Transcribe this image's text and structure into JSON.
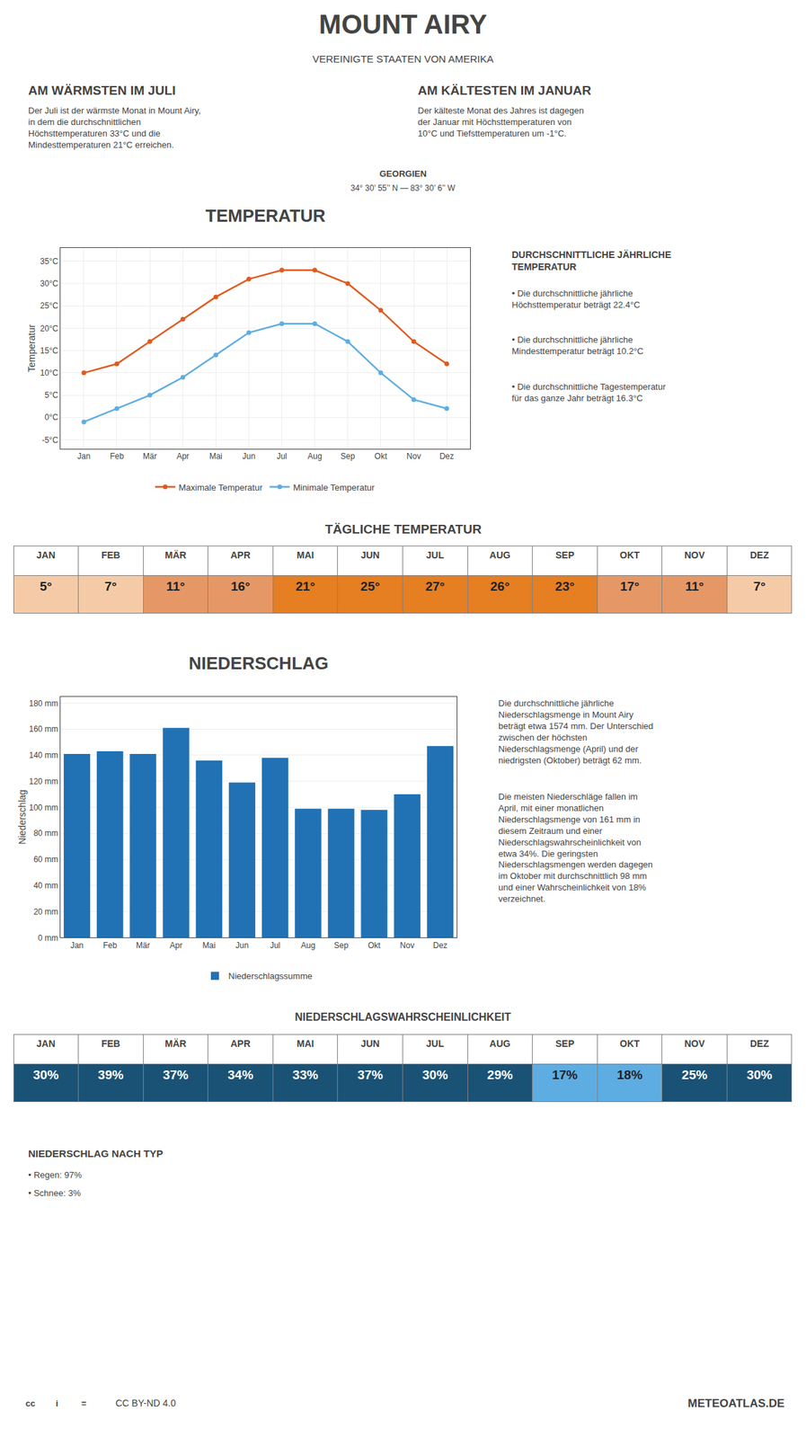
{
  "title": "MOUNT AIRY",
  "subtitle": "VEREINIGTE STAATEN VON AMERIKA",
  "annotations": [
    "34° 30’ 55’’ N — 83° 30’ 6’’ W",
    "GEORGIEN",
    "cc",
    "i",
    "=",
    "CC BY-ND 4.0",
    "METEOATLAS.DE"
  ],
  "chart_data": [
    {
      "type": "line",
      "title": "TEMPERATUR",
      "ylabel": "Temperatur",
      "categories": [
        "Jan",
        "Feb",
        "Mär",
        "Apr",
        "Mai",
        "Jun",
        "Jul",
        "Aug",
        "Sep",
        "Okt",
        "Nov",
        "Dez"
      ],
      "series": [
        {
          "name": "Maximale Temperatur",
          "color": "#e05a1e",
          "marker": "circle",
          "values": [
            10,
            12,
            17,
            22,
            27,
            31,
            33,
            33,
            30,
            24,
            17,
            12
          ]
        },
        {
          "name": "Minimale Temperatur",
          "color": "#5dade2",
          "marker": "circle",
          "values": [
            -1,
            2,
            5,
            9,
            14,
            19,
            21,
            21,
            17,
            10,
            4,
            2
          ]
        }
      ],
      "ylim": [
        -7,
        38
      ],
      "yticks": [
        {
          "value": -5,
          "label": "-5°C"
        },
        {
          "value": 0,
          "label": "0°C"
        },
        {
          "value": 5,
          "label": "5°C"
        },
        {
          "value": 10,
          "label": "10°C"
        },
        {
          "value": 15,
          "label": "15°C"
        },
        {
          "value": 20,
          "label": "20°C"
        },
        {
          "value": 25,
          "label": "25°C"
        },
        {
          "value": 30,
          "label": "30°C"
        },
        {
          "value": 35,
          "label": "35°C"
        }
      ],
      "grid": true,
      "legend": "bottom",
      "annotations": [
        "AM WÄRMSTEN IM JULI",
        "Der Juli ist der wärmste Monat in Mount Airy,\nin dem die durchschnittlichen\nHöchsttemperaturen 33°C und die\nMindesttemperaturen 21°C erreichen.",
        "AM KÄLTESTEN IM JANUAR",
        "Der kälteste Monat des Jahres ist dagegen\nder Januar mit Höchsttemperaturen von\n10°C und Tiefsttemperaturen um -1°C.",
        "DURCHSCHNITTLICHE JÄHRLICHE\nTEMPERATUR",
        "• Die durchschnittliche jährliche\nHöchsttemperatur beträgt 22.4°C",
        "• Die durchschnittliche jährliche\nMindesttemperatur beträgt 10.2°C",
        "• Die durchschnittliche Tagestemperatur\nfür das ganze Jahr beträgt 16.3°C"
      ]
    },
    {
      "type": "table",
      "title": "TÄGLICHE TEMPERATUR",
      "categories": [
        "JAN",
        "FEB",
        "MÄR",
        "APR",
        "MAI",
        "JUN",
        "JUL",
        "AUG",
        "SEP",
        "OKT",
        "NOV",
        "DEZ"
      ],
      "values": [
        5,
        7,
        11,
        16,
        21,
        25,
        27,
        26,
        23,
        17,
        11,
        7
      ],
      "value_labels": [
        "5°",
        "7°",
        "11°",
        "16°",
        "21°",
        "25°",
        "27°",
        "26°",
        "23°",
        "17°",
        "11°",
        "7°"
      ],
      "colors": [
        "#f5cba7",
        "#f5cba7",
        "#e59866",
        "#e59866",
        "#e67e22",
        "#e67e22",
        "#e67e22",
        "#e67e22",
        "#e67e22",
        "#e59866",
        "#e59866",
        "#f5cba7"
      ],
      "data_labels": true
    },
    {
      "type": "bar",
      "title": "NIEDERSCHLAG",
      "ylabel": "Niederschlag",
      "categories": [
        "Jan",
        "Feb",
        "Mär",
        "Apr",
        "Mai",
        "Jun",
        "Jul",
        "Aug",
        "Sep",
        "Okt",
        "Nov",
        "Dez"
      ],
      "series": [
        {
          "name": "Niederschlagssumme",
          "color": "#2171b5",
          "values": [
            141,
            143,
            141,
            161,
            136,
            119,
            138,
            99,
            99,
            98,
            110,
            147
          ]
        }
      ],
      "ylim": [
        0,
        185
      ],
      "yticks": [
        {
          "value": 0,
          "label": "0 mm"
        },
        {
          "value": 20,
          "label": "20 mm"
        },
        {
          "value": 40,
          "label": "40 mm"
        },
        {
          "value": 60,
          "label": "60 mm"
        },
        {
          "value": 80,
          "label": "80 mm"
        },
        {
          "value": 100,
          "label": "100 mm"
        },
        {
          "value": 120,
          "label": "120 mm"
        },
        {
          "value": 140,
          "label": "140 mm"
        },
        {
          "value": 160,
          "label": "160 mm"
        },
        {
          "value": 180,
          "label": "180 mm"
        }
      ],
      "grid": "y",
      "legend": "bottom",
      "annotations": [
        "Die durchschnittliche jährliche\nNiederschlagsmenge in Mount Airy\nbeträgt etwa 1574 mm. Der Unterschied\nzwischen der höchsten\nNiederschlagsmenge (April) und der\nniedrigsten (Oktober) beträgt 62 mm.",
        "Die meisten Niederschläge fallen im\nApril, mit einer monatlichen\nNiederschlagsmenge von 161 mm in\ndiesem Zeitraum und einer\nNiederschlagswahrscheinlichkeit von\netwa 34%. Die geringsten\nNiederschlagsmengen werden dagegen\nim Oktober mit durchschnittlich 98 mm\nund einer Wahrscheinlichkeit von 18%\nverzeichnet."
      ]
    },
    {
      "type": "table",
      "title": "NIEDERSCHLAGSWAHRSCHEINLICHKEIT",
      "categories": [
        "JAN",
        "FEB",
        "MÄR",
        "APR",
        "MAI",
        "JUN",
        "JUL",
        "AUG",
        "SEP",
        "OKT",
        "NOV",
        "DEZ"
      ],
      "values": [
        30,
        39,
        37,
        34,
        33,
        37,
        30,
        29,
        17,
        18,
        25,
        30
      ],
      "value_labels": [
        "30%",
        "39%",
        "37%",
        "34%",
        "33%",
        "37%",
        "30%",
        "29%",
        "17%",
        "18%",
        "25%",
        "30%"
      ],
      "colors": [
        "#1a5276",
        "#1a5276",
        "#1a5276",
        "#1a5276",
        "#1a5276",
        "#1a5276",
        "#1a5276",
        "#1a5276",
        "#5dade2",
        "#5dade2",
        "#1a5276",
        "#1a5276"
      ],
      "data_labels": true,
      "annotations": [
        "NIEDERSCHLAG NACH TYP",
        "• Regen: 97%",
        "• Schnee: 3%"
      ]
    }
  ]
}
